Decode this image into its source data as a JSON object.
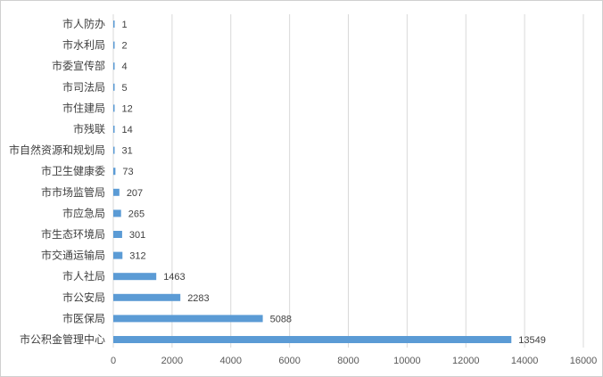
{
  "chart_data": {
    "type": "bar",
    "orientation": "horizontal",
    "title": "",
    "xlabel": "",
    "ylabel": "",
    "categories": [
      "市人防办",
      "市水利局",
      "市委宣传部",
      "市司法局",
      "市住建局",
      "市残联",
      "市自然资源和规划局",
      "市卫生健康委",
      "市市场监管局",
      "市应急局",
      "市生态环境局",
      "市交通运输局",
      "市人社局",
      "市公安局",
      "市医保局",
      "市公积金管理中心"
    ],
    "values": [
      1,
      2,
      4,
      5,
      12,
      14,
      31,
      73,
      207,
      265,
      301,
      312,
      1463,
      2283,
      5088,
      13549
    ],
    "xlim": [
      0,
      16000
    ],
    "xticks": [
      0,
      2000,
      4000,
      6000,
      8000,
      10000,
      12000,
      14000,
      16000
    ],
    "grid": true,
    "legend": "none",
    "bar_color": "#5b9bd5",
    "grid_color": "#d9d9d9"
  }
}
